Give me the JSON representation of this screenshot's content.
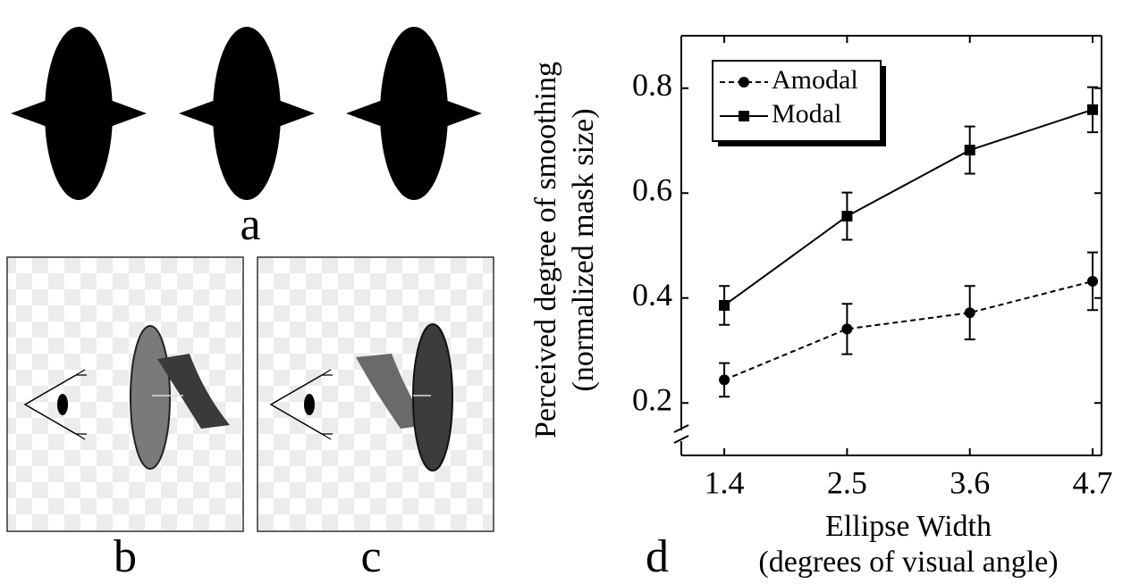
{
  "panel_labels": [
    "a",
    "b",
    "c",
    "d"
  ],
  "chart_data": {
    "type": "line",
    "ylabel": [
      "Perceived degree of smoothing",
      "(normalized mask size)"
    ],
    "xlabel": [
      "Ellipse Width",
      "(degrees of visual angle)"
    ],
    "x": [
      1.4,
      2.5,
      3.6,
      4.7
    ],
    "xlim": [
      1.015,
      4.78
    ],
    "xticks": [
      1.4,
      2.5,
      3.6,
      4.7
    ],
    "ylim": [
      0.1,
      0.9
    ],
    "yticks": [
      0.2,
      0.4,
      0.6,
      0.8
    ],
    "axis_break": true,
    "legend": "upper left",
    "series": [
      {
        "name": "Amodal",
        "color": "#000",
        "marker": "circle",
        "dash": true,
        "values": [
          0.244,
          0.341,
          0.372,
          0.432
        ],
        "errors": [
          0.032,
          0.048,
          0.051,
          0.055
        ]
      },
      {
        "name": "Modal",
        "color": "#000",
        "marker": "square",
        "dash": false,
        "values": [
          0.386,
          0.556,
          0.682,
          0.759
        ],
        "errors": [
          0.037,
          0.045,
          0.045,
          0.043
        ]
      }
    ]
  }
}
